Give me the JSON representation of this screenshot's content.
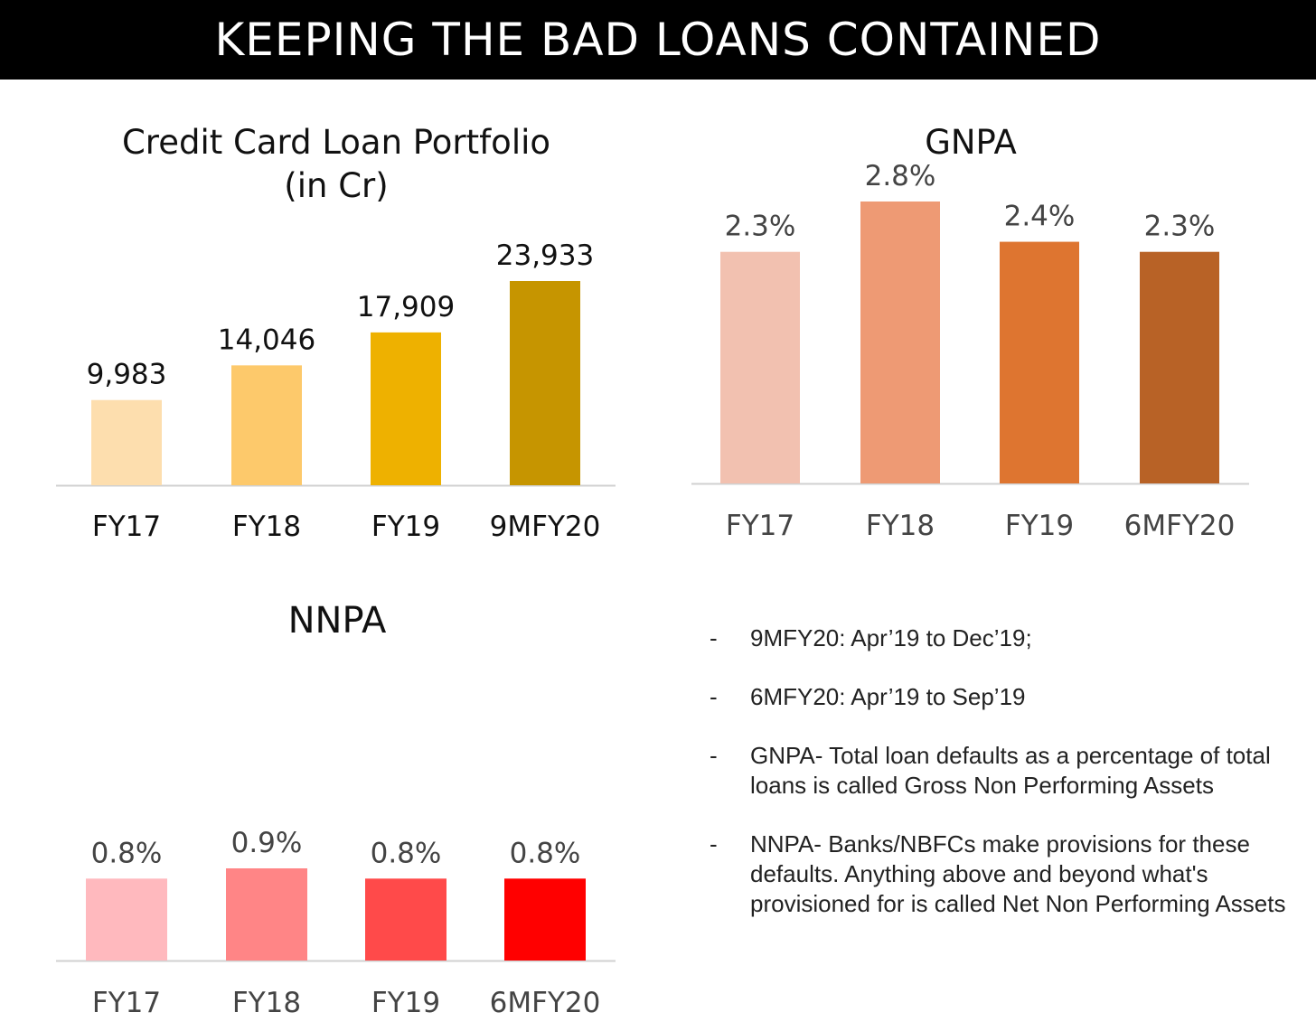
{
  "banner": {
    "title": "KEEPING THE BAD LOANS CONTAINED"
  },
  "chart_data": [
    {
      "id": "credit",
      "type": "bar",
      "title": "Credit Card Loan Portfolio\n(in Cr)",
      "categories": [
        "FY17",
        "FY18",
        "FY19",
        "9MFY20"
      ],
      "values": [
        9983,
        14046,
        17909,
        23933
      ],
      "value_labels": [
        "9,983",
        "14,046",
        "17,909",
        "23,933"
      ],
      "colors": [
        "#FDDEAE",
        "#FDC96B",
        "#EEB100",
        "#C69500"
      ],
      "tick_color": "#111111",
      "ylim": [
        0,
        23933
      ]
    },
    {
      "id": "gnpa",
      "type": "bar",
      "title": "GNPA",
      "categories": [
        "FY17",
        "FY18",
        "FY19",
        "6MFY20"
      ],
      "values": [
        2.3,
        2.8,
        2.4,
        2.3
      ],
      "value_labels": [
        "2.3%",
        "2.8%",
        "2.4%",
        "2.3%"
      ],
      "colors": [
        "#F2C1B0",
        "#EE9A74",
        "#DE7530",
        "#B86226"
      ],
      "tick_color": "#444444",
      "ylim": [
        0,
        2.8
      ]
    },
    {
      "id": "nnpa",
      "type": "bar",
      "title": "NNPA",
      "categories": [
        "FY17",
        "FY18",
        "FY19",
        "6MFY20"
      ],
      "values": [
        0.8,
        0.9,
        0.8,
        0.8
      ],
      "value_labels": [
        "0.8%",
        "0.9%",
        "0.8%",
        "0.8%"
      ],
      "colors": [
        "#FFB9BE",
        "#FF8586",
        "#FF4A4A",
        "#FF0000"
      ],
      "tick_color": "#444444",
      "ylim": [
        0,
        0.9
      ]
    }
  ],
  "notes": [
    {
      "dash": "-",
      "text": "9MFY20: Apr’19 to Dec’19;"
    },
    {
      "dash": "-",
      "text": "6MFY20: Apr’19 to Sep’19"
    },
    {
      "dash": "-",
      "text": "GNPA- Total loan defaults as a percentage of total loans is called Gross Non Performing Assets"
    },
    {
      "dash": "-",
      "text": "NNPA- Banks/NBFCs make provisions for these defaults. Anything above and beyond what's provisioned for is called Net Non Performing Assets"
    }
  ]
}
